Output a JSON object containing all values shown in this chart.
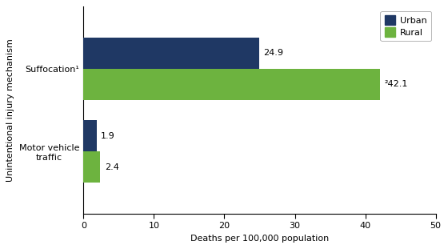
{
  "categories": [
    "Motor vehicle\ntraffic",
    "Suffocation¹"
  ],
  "urban_values": [
    1.9,
    24.9
  ],
  "rural_values": [
    2.4,
    42.1
  ],
  "urban_color": "#1f3864",
  "rural_color": "#6db33f",
  "xlabel": "Deaths per 100,000 population",
  "ylabel": "Unintentional injury mechanism",
  "xlim": [
    0,
    50
  ],
  "xticks": [
    0,
    10,
    20,
    30,
    40,
    50
  ],
  "bar_height": 0.38,
  "background_color": "#ffffff",
  "annotation_suffocation_urban": "24.9",
  "annotation_suffocation_rural": "²42.1",
  "annotation_motor_urban": "1.9",
  "annotation_motor_rural": "2.4",
  "annotation_fontsize": 8,
  "ylabel_fontsize": 8,
  "xlabel_fontsize": 8,
  "tick_fontsize": 8,
  "legend_fontsize": 8,
  "category_label_suffocation": "Suffocation¹",
  "category_label_motor": "Motor vehicle\ntraffic"
}
